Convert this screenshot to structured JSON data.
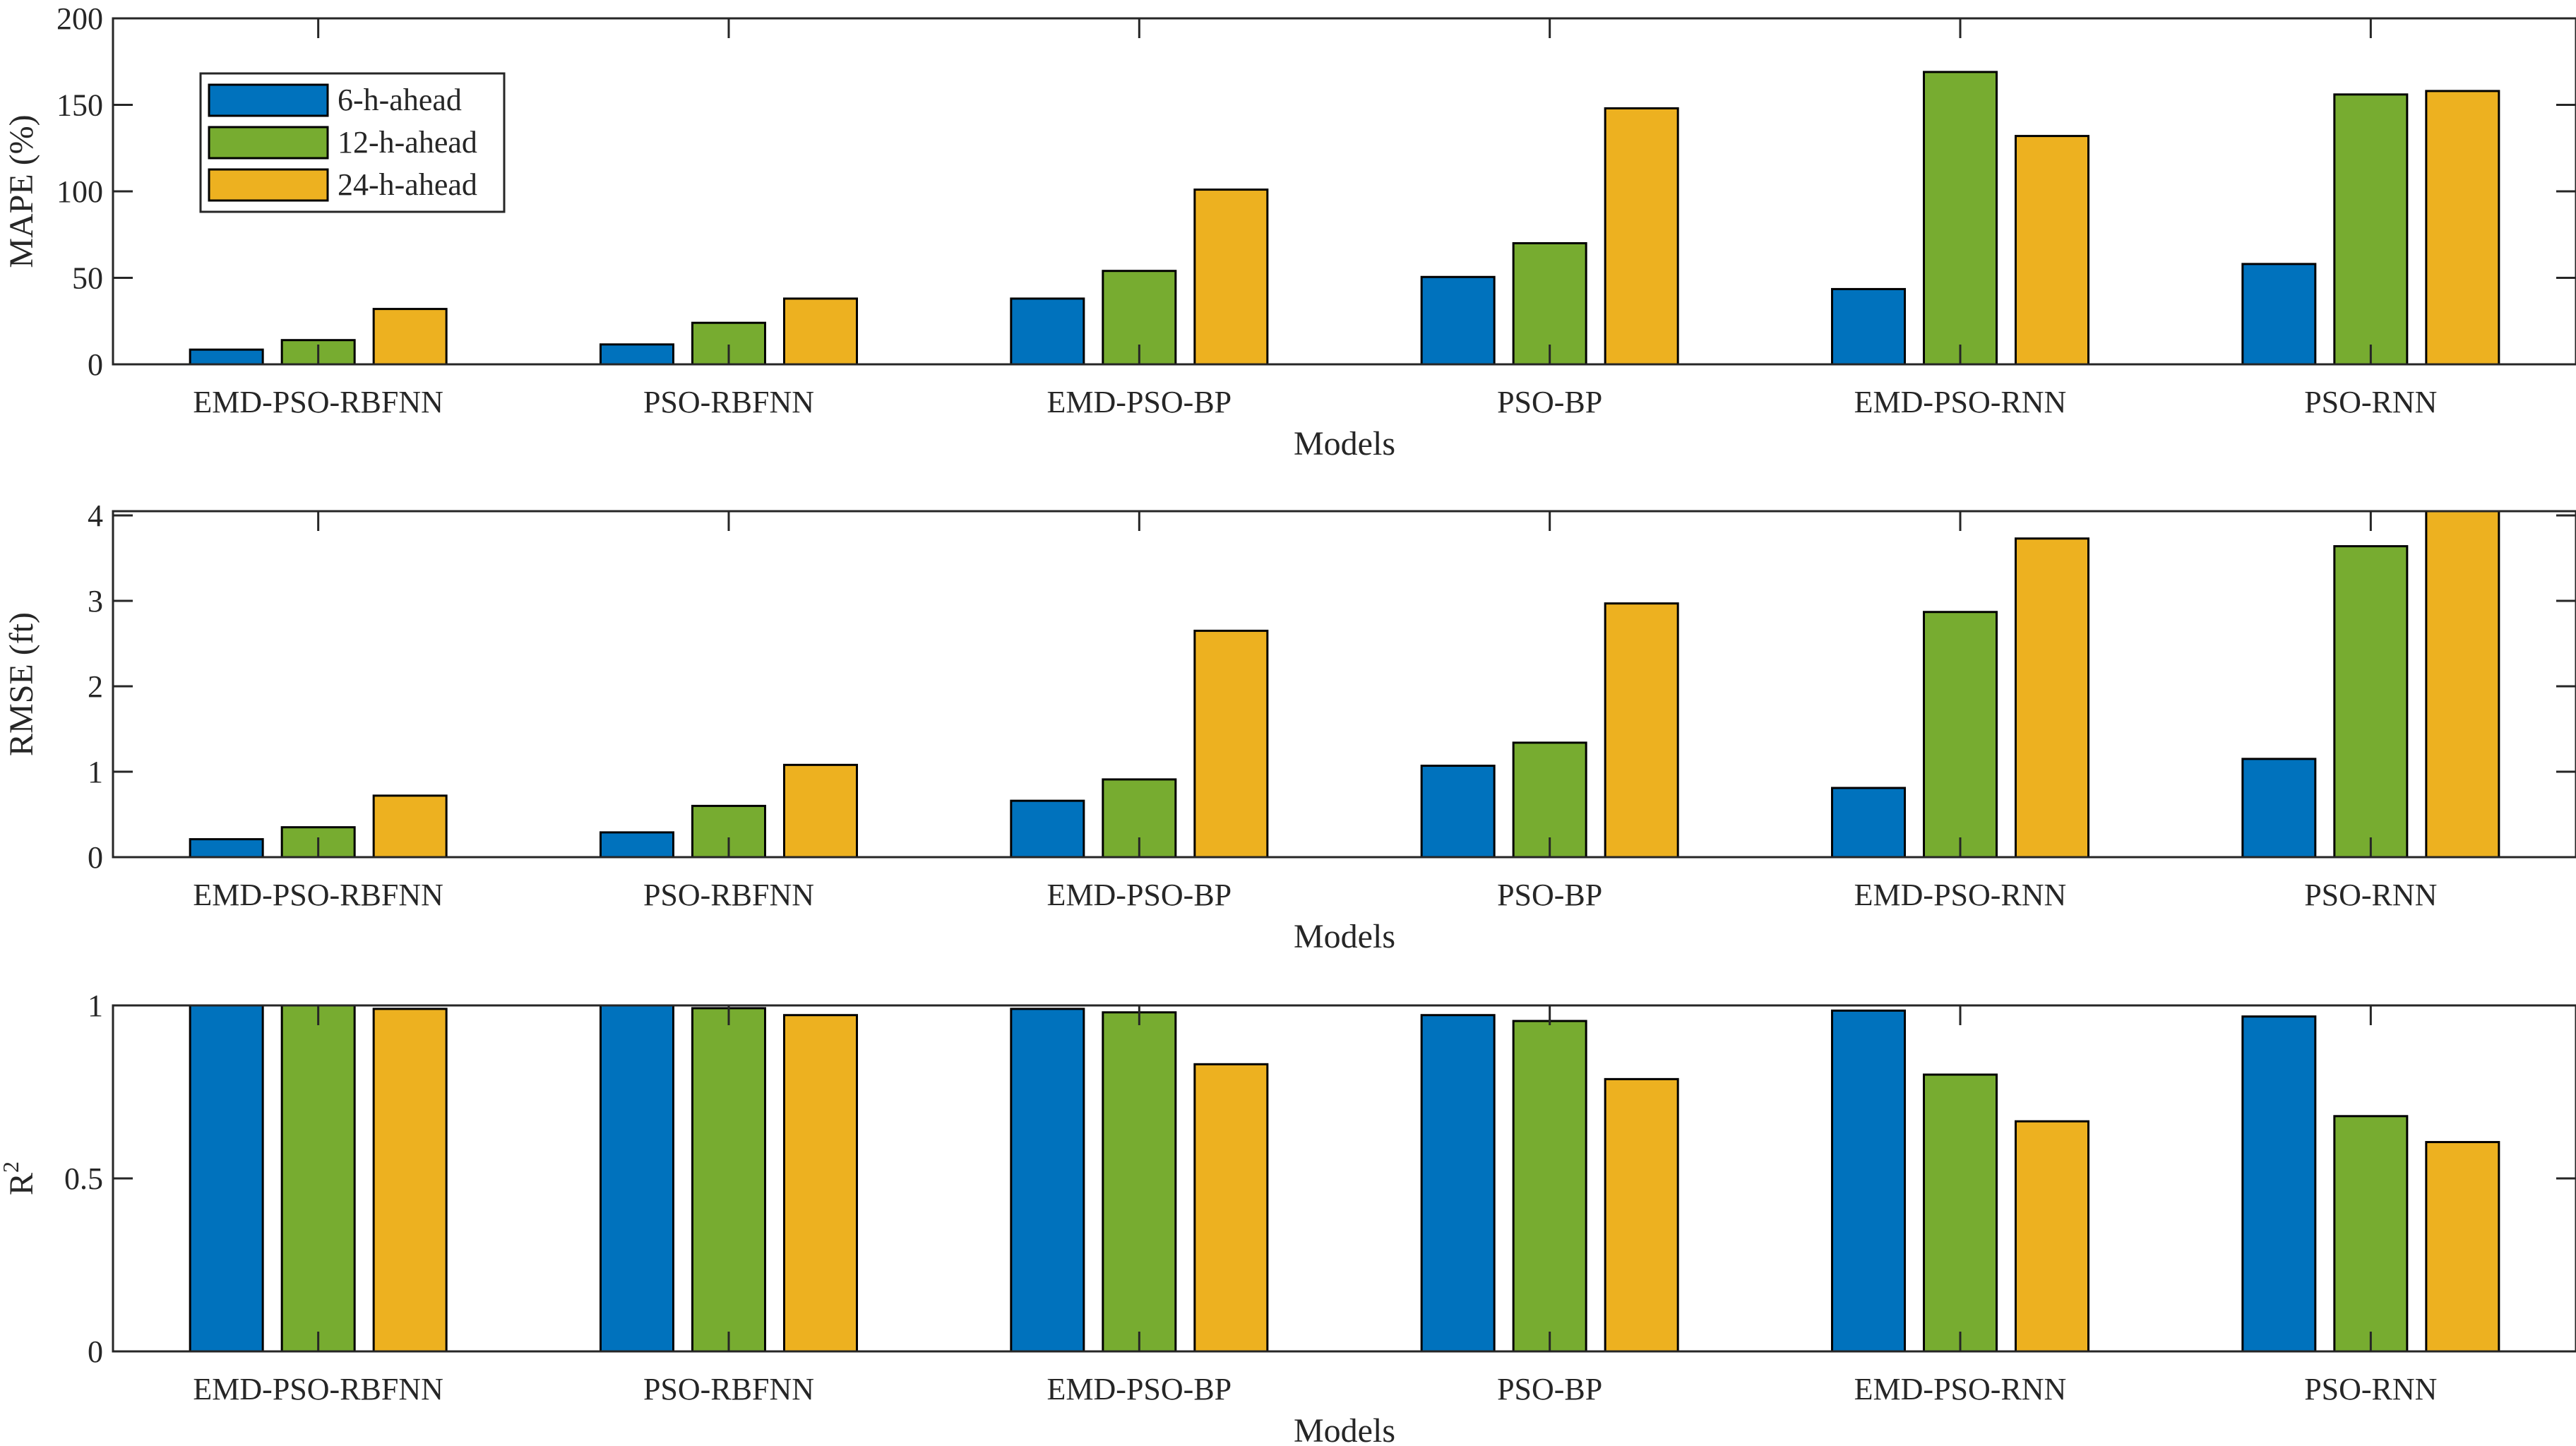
{
  "legend": [
    "6-h-ahead",
    "12-h-ahead",
    "24-h-ahead"
  ],
  "colors": [
    "#0072BD",
    "#77AC30",
    "#EDB120"
  ],
  "chart_data": [
    {
      "type": "bar",
      "ylabel": "MAPE (%)",
      "xlabel": "Models",
      "ylim": [
        0,
        200
      ],
      "yticks": [
        0,
        50,
        100,
        150,
        200
      ],
      "ytick_labels": [
        "0",
        "50",
        "100",
        "150",
        "200"
      ],
      "legend_placement": "top-left",
      "categories": [
        "EMD-PSO-RBFNN",
        "PSO-RBFNN",
        "EMD-PSO-BP",
        "PSO-BP",
        "EMD-PSO-RNN",
        "PSO-RNN"
      ],
      "series": [
        {
          "name": "6-h-ahead",
          "values": [
            8.5,
            11.5,
            38,
            50.5,
            43.5,
            58
          ]
        },
        {
          "name": "12-h-ahead",
          "values": [
            14,
            24,
            54,
            70,
            169,
            156
          ]
        },
        {
          "name": "24-h-ahead",
          "values": [
            32,
            38,
            101,
            148,
            132,
            158
          ]
        }
      ]
    },
    {
      "type": "bar",
      "ylabel": "RMSE (ft)",
      "xlabel": "Models",
      "ylim": [
        0,
        4.05
      ],
      "yticks": [
        0,
        1,
        2,
        3,
        4
      ],
      "ytick_labels": [
        "0",
        "1",
        "2",
        "3",
        "4"
      ],
      "categories": [
        "EMD-PSO-RBFNN",
        "PSO-RBFNN",
        "EMD-PSO-BP",
        "PSO-BP",
        "EMD-PSO-RNN",
        "PSO-RNN"
      ],
      "series": [
        {
          "name": "6-h-ahead",
          "values": [
            0.21,
            0.29,
            0.66,
            1.07,
            0.81,
            1.15
          ]
        },
        {
          "name": "12-h-ahead",
          "values": [
            0.35,
            0.6,
            0.91,
            1.34,
            2.87,
            3.64
          ]
        },
        {
          "name": "24-h-ahead",
          "values": [
            0.72,
            1.08,
            2.65,
            2.97,
            3.73,
            4.05
          ]
        }
      ]
    },
    {
      "type": "bar",
      "ylabel": "R",
      "ylabel_sup": "2",
      "xlabel": "Models",
      "ylim": [
        0,
        1
      ],
      "yticks": [
        0,
        0.5,
        1
      ],
      "ytick_labels": [
        "0",
        "0.5",
        "1"
      ],
      "categories": [
        "EMD-PSO-RBFNN",
        "PSO-RBFNN",
        "EMD-PSO-BP",
        "PSO-BP",
        "EMD-PSO-RNN",
        "PSO-RNN"
      ],
      "series": [
        {
          "name": "6-h-ahead",
          "values": [
            1.0,
            1.0,
            0.99,
            0.972,
            0.985,
            0.968
          ]
        },
        {
          "name": "12-h-ahead",
          "values": [
            1.0,
            0.992,
            0.98,
            0.955,
            0.8,
            0.68
          ]
        },
        {
          "name": "24-h-ahead",
          "values": [
            0.99,
            0.972,
            0.83,
            0.787,
            0.665,
            0.605
          ]
        }
      ]
    }
  ]
}
